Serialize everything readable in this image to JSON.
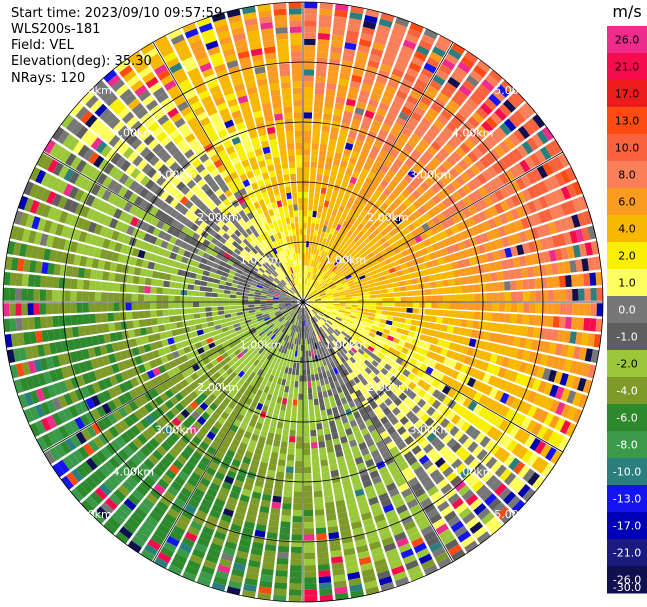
{
  "header": {
    "start_time": "Start time: 2023/09/10 09:57:59",
    "instrument": "WLS200s-181",
    "field": "Field: VEL",
    "elevation": "Elevation(deg): 35.30",
    "nrays": "NRays: 120"
  },
  "chart_data": {
    "type": "heatmap",
    "projection": "polar-ppi",
    "title": "",
    "field": "VEL",
    "units": "m/s",
    "n_rays": 120,
    "elevation_deg": 35.3,
    "range_rings_km": [
      1.0,
      2.0,
      3.0,
      4.0,
      5.0
    ],
    "range_ring_labels": [
      "1.00km",
      "2.00km",
      "3.00km",
      "4.00km",
      "5.00km"
    ],
    "max_range_km": 5.0,
    "spokes_deg": [
      0,
      30,
      60,
      90,
      120,
      150,
      180,
      210,
      240,
      270,
      300,
      330
    ],
    "colorbar": {
      "label": "m/s",
      "ticks": [
        "26.0",
        "21.0",
        "17.0",
        "13.0",
        "10.0",
        "8.0",
        "6.0",
        "4.0",
        "2.0",
        "1.0",
        "0.0",
        "-1.0",
        "-2.0",
        "-4.0",
        "-6.0",
        "-8.0",
        "-10.0",
        "-13.0",
        "-17.0",
        "-21.0",
        "-26.0",
        "-30.0"
      ],
      "colors": [
        "#ee2c8c",
        "#f50c4c",
        "#ec1c1c",
        "#ff4a10",
        "#f8623c",
        "#f97f58",
        "#fb9c20",
        "#f8b800",
        "#f8f000",
        "#ffff60",
        "#777777",
        "#5e5e5e",
        "#9ac83a",
        "#7e9a28",
        "#2c8a2c",
        "#3a9a4a",
        "#2a7e7e",
        "#1414f0",
        "#0000b4",
        "#1a1a80",
        "#101050"
      ]
    },
    "wind_pattern": {
      "toward_direction_deg": 45,
      "near_speed_ms": 1.5,
      "far_speed_ms": 9.0
    }
  }
}
